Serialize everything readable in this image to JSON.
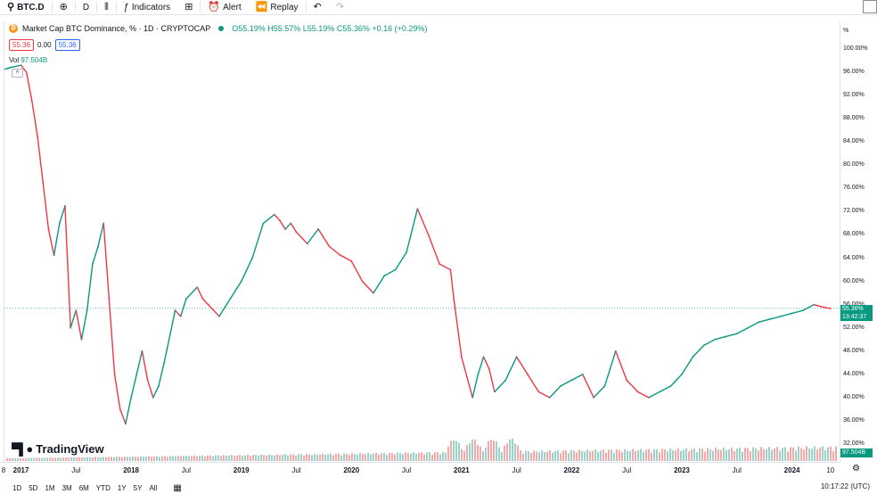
{
  "toolbar": {
    "symbol": "BTC.D",
    "interval": "D",
    "indicators_label": "Indicators",
    "alert_label": "Alert",
    "replay_label": "Replay"
  },
  "legend": {
    "title": "Market Cap BTC Dominance, % · 1D · CRYPTOCAP",
    "ohlc": "O55.19% H55.57% L55.19% C55.36% +0.16 (+0.29%)",
    "bid": "55.36",
    "spread": "0.00",
    "ask": "55.36",
    "vol_label": "Vol",
    "vol_value": "97.504B"
  },
  "price_scale": {
    "unit": "%",
    "last_price": "55.36%",
    "countdown": "13:42:37",
    "vol_badge": "97.504B",
    "tick_labels": [
      "100.00%",
      "96.00%",
      "92.00%",
      "88.00%",
      "84.00%",
      "80.00%",
      "76.00%",
      "72.00%",
      "68.00%",
      "64.00%",
      "60.00%",
      "56.00%",
      "52.00%",
      "48.00%",
      "44.00%",
      "40.00%",
      "36.00%",
      "32.00%"
    ]
  },
  "brand": {
    "logo_text": "TradingView"
  },
  "time_axis": {
    "labels": [
      "8",
      "2017",
      "Jul",
      "2018",
      "Jul",
      "2019",
      "Jul",
      "2020",
      "Jul",
      "2021",
      "Jul",
      "2022",
      "Jul",
      "2023",
      "Jul",
      "2024",
      "10"
    ],
    "year_labels": [
      "2017",
      "2018",
      "2019",
      "2020",
      "2021",
      "2022",
      "2023",
      "2024"
    ]
  },
  "range_bar": {
    "ranges": [
      "1D",
      "5D",
      "1M",
      "3M",
      "6M",
      "YTD",
      "1Y",
      "5Y",
      "All"
    ],
    "clock": "10:17:22 (UTC)"
  },
  "colors": {
    "up": "#089981",
    "down": "#f23645",
    "vol_up": "#9bd3c9",
    "vol_down": "#f5a9a9",
    "last_line": "#089981"
  },
  "chart_data": {
    "type": "line",
    "title": "Market Cap BTC Dominance, % · 1D · CRYPTOCAP",
    "xlabel": "",
    "ylabel": "%",
    "ylim": [
      32,
      102
    ],
    "grid": false,
    "x": [
      2016.95,
      2017.0,
      2017.1,
      2017.15,
      2017.2,
      2017.25,
      2017.3,
      2017.35,
      2017.4,
      2017.45,
      2017.5,
      2017.55,
      2017.6,
      2017.65,
      2017.7,
      2017.75,
      2017.8,
      2017.85,
      2017.9,
      2017.95,
      2018.0,
      2018.05,
      2018.1,
      2018.15,
      2018.2,
      2018.25,
      2018.3,
      2018.35,
      2018.4,
      2018.5,
      2018.55,
      2018.6,
      2018.7,
      2018.75,
      2018.8,
      2018.9,
      2019.0,
      2019.1,
      2019.2,
      2019.3,
      2019.4,
      2019.45,
      2019.5,
      2019.55,
      2019.6,
      2019.7,
      2019.8,
      2019.9,
      2020.0,
      2020.1,
      2020.2,
      2020.3,
      2020.4,
      2020.5,
      2020.6,
      2020.7,
      2020.8,
      2020.9,
      2021.0,
      2021.03,
      2021.1,
      2021.2,
      2021.25,
      2021.3,
      2021.35,
      2021.4,
      2021.5,
      2021.6,
      2021.7,
      2021.8,
      2021.9,
      2022.0,
      2022.1,
      2022.2,
      2022.3,
      2022.4,
      2022.45,
      2022.5,
      2022.6,
      2022.7,
      2022.8,
      2022.9,
      2023.0,
      2023.1,
      2023.2,
      2023.3,
      2023.4,
      2023.5,
      2023.6,
      2023.7,
      2023.8,
      2023.9,
      2024.0,
      2024.1,
      2024.2,
      2024.3,
      2024.4,
      2024.45
    ],
    "series": [
      {
        "values": [
          96.5,
          96.8,
          97.2,
          96.0,
          91.0,
          85.0,
          77.0,
          69.0,
          64.5,
          70.0,
          73.0,
          52.0,
          55.0,
          50.0,
          55.0,
          63.0,
          66.0,
          70.0,
          57.0,
          44.0,
          38.0,
          35.5,
          40.0,
          44.0,
          48.0,
          43.0,
          40.0,
          42.0,
          46.0,
          55.0,
          54.0,
          57.0,
          59.0,
          57.0,
          56.0,
          54.0,
          57.0,
          60.0,
          64.0,
          70.0,
          71.5,
          70.5,
          69.0,
          70.0,
          68.5,
          66.5,
          69.0,
          66.0,
          64.5,
          63.5,
          60.0,
          58.0,
          61.0,
          62.0,
          65.0,
          72.5,
          68.0,
          63.0,
          62.0,
          57.0,
          47.0,
          40.0,
          44.0,
          47.0,
          45.0,
          41.0,
          43.0,
          47.0,
          44.0,
          41.0,
          40.0,
          42.0,
          43.0,
          44.0,
          40.0,
          42.0,
          45.0,
          48.0,
          43.0,
          41.0,
          40.0,
          41.0,
          42.0,
          44.0,
          47.0,
          49.0,
          50.0,
          50.5,
          51.0,
          52.0,
          53.0,
          53.5,
          54.0,
          54.5,
          55.0,
          56.0,
          55.5,
          55.36
        ]
      }
    ]
  }
}
